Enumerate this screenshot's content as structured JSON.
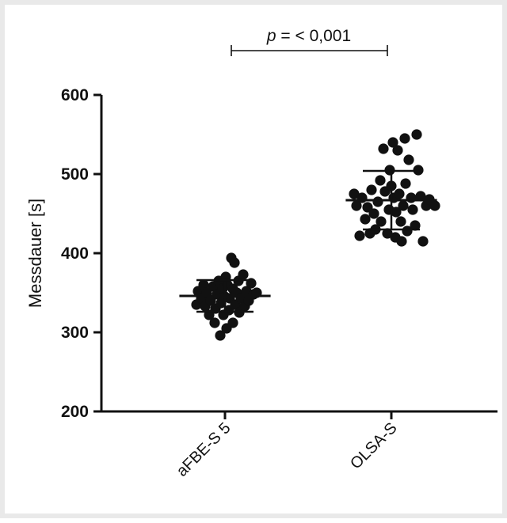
{
  "chart_data": {
    "type": "scatter",
    "title": "",
    "xlabel": "",
    "ylabel": "Messdauer  [s]",
    "ylim": [
      200,
      600
    ],
    "yticks": [
      200,
      300,
      400,
      500,
      600
    ],
    "categories": [
      "aFBE-S 5",
      "OLSA-S"
    ],
    "annotation": {
      "prefix": "p",
      "text": " = < 0,001"
    },
    "series": [
      {
        "category": "aFBE-S 5",
        "mean": 346,
        "sd_low": 326,
        "sd_high": 366,
        "points": [
          {
            "offset": -0.36,
            "y": 335
          },
          {
            "offset": -0.34,
            "y": 352
          },
          {
            "offset": -0.3,
            "y": 343
          },
          {
            "offset": -0.27,
            "y": 360
          },
          {
            "offset": -0.25,
            "y": 333
          },
          {
            "offset": -0.23,
            "y": 350
          },
          {
            "offset": -0.2,
            "y": 322
          },
          {
            "offset": -0.18,
            "y": 340
          },
          {
            "offset": -0.15,
            "y": 358
          },
          {
            "offset": -0.13,
            "y": 312
          },
          {
            "offset": -0.12,
            "y": 330
          },
          {
            "offset": -0.1,
            "y": 348
          },
          {
            "offset": -0.08,
            "y": 365
          },
          {
            "offset": -0.06,
            "y": 296
          },
          {
            "offset": -0.05,
            "y": 337
          },
          {
            "offset": -0.03,
            "y": 355
          },
          {
            "offset": -0.02,
            "y": 322
          },
          {
            "offset": 0.0,
            "y": 345
          },
          {
            "offset": 0.01,
            "y": 370
          },
          {
            "offset": 0.02,
            "y": 305
          },
          {
            "offset": 0.03,
            "y": 360
          },
          {
            "offset": 0.05,
            "y": 328
          },
          {
            "offset": 0.06,
            "y": 343
          },
          {
            "offset": 0.08,
            "y": 394
          },
          {
            "offset": 0.1,
            "y": 355
          },
          {
            "offset": 0.1,
            "y": 312
          },
          {
            "offset": 0.12,
            "y": 388
          },
          {
            "offset": 0.13,
            "y": 335
          },
          {
            "offset": 0.15,
            "y": 350
          },
          {
            "offset": 0.17,
            "y": 365
          },
          {
            "offset": 0.18,
            "y": 325
          },
          {
            "offset": 0.2,
            "y": 343
          },
          {
            "offset": 0.23,
            "y": 373
          },
          {
            "offset": 0.25,
            "y": 333
          },
          {
            "offset": 0.27,
            "y": 352
          },
          {
            "offset": 0.3,
            "y": 340
          },
          {
            "offset": 0.33,
            "y": 362
          },
          {
            "offset": 0.36,
            "y": 348
          },
          {
            "offset": 0.4,
            "y": 350
          }
        ]
      },
      {
        "category": "OLSA-S",
        "mean": 467,
        "sd_low": 430,
        "sd_high": 504,
        "points": [
          {
            "offset": -0.47,
            "y": 475
          },
          {
            "offset": -0.44,
            "y": 460
          },
          {
            "offset": -0.4,
            "y": 422
          },
          {
            "offset": -0.37,
            "y": 470
          },
          {
            "offset": -0.33,
            "y": 443
          },
          {
            "offset": -0.3,
            "y": 458
          },
          {
            "offset": -0.27,
            "y": 425
          },
          {
            "offset": -0.25,
            "y": 480
          },
          {
            "offset": -0.22,
            "y": 450
          },
          {
            "offset": -0.2,
            "y": 430
          },
          {
            "offset": -0.17,
            "y": 465
          },
          {
            "offset": -0.14,
            "y": 492
          },
          {
            "offset": -0.13,
            "y": 440
          },
          {
            "offset": -0.1,
            "y": 532
          },
          {
            "offset": -0.08,
            "y": 478
          },
          {
            "offset": -0.05,
            "y": 425
          },
          {
            "offset": -0.03,
            "y": 455
          },
          {
            "offset": -0.02,
            "y": 505
          },
          {
            "offset": 0.0,
            "y": 485
          },
          {
            "offset": 0.02,
            "y": 540
          },
          {
            "offset": 0.03,
            "y": 470
          },
          {
            "offset": 0.05,
            "y": 420
          },
          {
            "offset": 0.06,
            "y": 452
          },
          {
            "offset": 0.08,
            "y": 530
          },
          {
            "offset": 0.1,
            "y": 475
          },
          {
            "offset": 0.12,
            "y": 440
          },
          {
            "offset": 0.13,
            "y": 415
          },
          {
            "offset": 0.15,
            "y": 460
          },
          {
            "offset": 0.17,
            "y": 545
          },
          {
            "offset": 0.18,
            "y": 488
          },
          {
            "offset": 0.2,
            "y": 428
          },
          {
            "offset": 0.22,
            "y": 518
          },
          {
            "offset": 0.25,
            "y": 470
          },
          {
            "offset": 0.27,
            "y": 455
          },
          {
            "offset": 0.3,
            "y": 435
          },
          {
            "offset": 0.32,
            "y": 550
          },
          {
            "offset": 0.34,
            "y": 505
          },
          {
            "offset": 0.37,
            "y": 472
          },
          {
            "offset": 0.4,
            "y": 415
          },
          {
            "offset": 0.44,
            "y": 460
          },
          {
            "offset": 0.48,
            "y": 468
          },
          {
            "offset": 0.55,
            "y": 460
          }
        ]
      }
    ],
    "colors": {
      "point": "#111111",
      "axis": "#111111",
      "bars": "#111111"
    }
  }
}
